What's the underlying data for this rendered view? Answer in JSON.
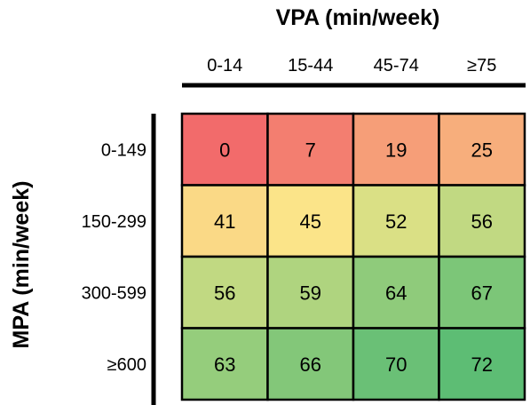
{
  "chart_data": {
    "type": "heatmap",
    "xlabel": "VPA (min/week)",
    "ylabel": "MPA (min/week)",
    "x_categories": [
      "0-14",
      "15-44",
      "45-74",
      "≥75"
    ],
    "y_categories": [
      "0-149",
      "150-299",
      "300-599",
      "≥600"
    ],
    "values": [
      [
        0,
        7,
        19,
        25
      ],
      [
        41,
        45,
        52,
        56
      ],
      [
        56,
        59,
        64,
        67
      ],
      [
        63,
        66,
        70,
        72
      ]
    ],
    "color_scale": {
      "low": "#f26b6b",
      "mid": "#fbe98a",
      "high": "#5dbd74"
    }
  }
}
